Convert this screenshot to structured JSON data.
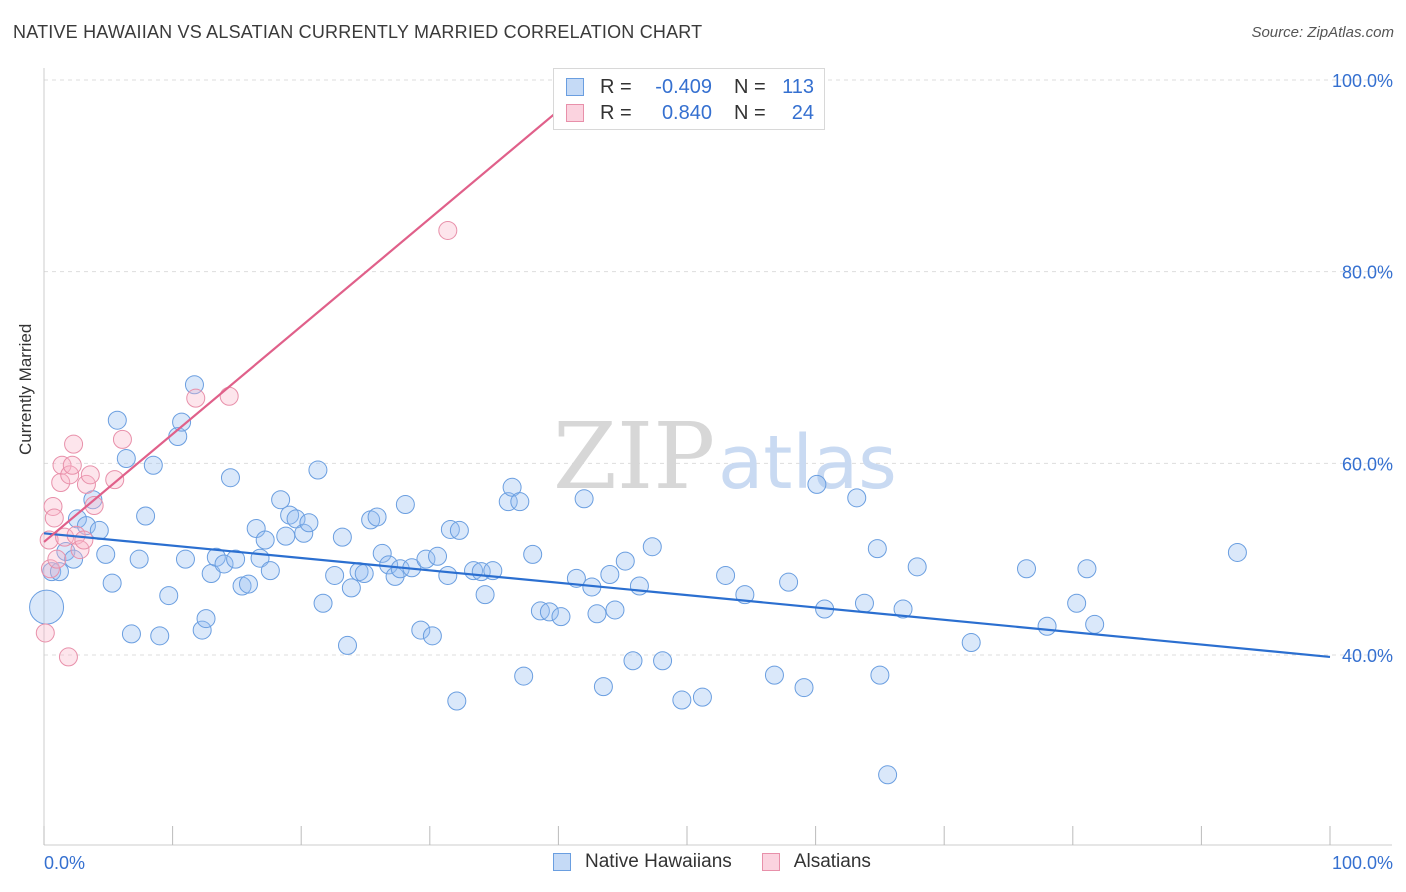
{
  "header": {
    "title": "NATIVE HAWAIIAN VS ALSATIAN CURRENTLY MARRIED CORRELATION CHART",
    "source": "Source: ZipAtlas.com"
  },
  "watermark": {
    "zip": "ZIP",
    "atlas": "atlas"
  },
  "legend": {
    "rows": [
      {
        "r_label": "R =",
        "r_value": "-0.409",
        "n_label": "N =",
        "n_value": "113",
        "color": "#a8c8f0",
        "border": "#6a9ee0"
      },
      {
        "r_label": "R =",
        "r_value": "0.840",
        "n_label": "N =",
        "n_value": "24",
        "color": "#f8bfd0",
        "border": "#e890aa"
      }
    ]
  },
  "bottom_legend": {
    "series1": "Native Hawaiians",
    "series2": "Alsatians"
  },
  "colors": {
    "blue_fill": "rgba(150,190,240,0.35)",
    "blue_stroke": "#6a9ee0",
    "blue_line": "#2b6fd0",
    "pink_fill": "rgba(248,180,200,0.35)",
    "pink_stroke": "#e890aa",
    "pink_line": "#e0608a",
    "axis_text": "#3570d0",
    "grid": "#dddddd"
  },
  "chart_data": {
    "type": "scatter",
    "title": "NATIVE HAWAIIAN VS ALSATIAN CURRENTLY MARRIED CORRELATION CHART",
    "xlabel": "",
    "ylabel": "Currently Married",
    "xlim": [
      0,
      100
    ],
    "ylim": [
      20,
      103
    ],
    "x_tick_labels": [
      "0.0%",
      "100.0%"
    ],
    "y_ticks": [
      40,
      60,
      80,
      100
    ],
    "y_tick_labels": [
      "40.0%",
      "60.0%",
      "80.0%",
      "100.0%"
    ],
    "grid": true,
    "series": [
      {
        "name": "Native Hawaiians",
        "trend": {
          "x": [
            0,
            100
          ],
          "y": [
            52.7,
            39.8
          ]
        },
        "points": [
          [
            0.2,
            45.0
          ],
          [
            0.6,
            48.7
          ],
          [
            1.2,
            48.7
          ],
          [
            1.7,
            50.8
          ],
          [
            2.3,
            50.0
          ],
          [
            2.6,
            54.2
          ],
          [
            3.3,
            53.5
          ],
          [
            3.8,
            56.2
          ],
          [
            4.3,
            53.0
          ],
          [
            4.8,
            50.5
          ],
          [
            5.3,
            47.5
          ],
          [
            5.7,
            64.5
          ],
          [
            6.4,
            60.5
          ],
          [
            6.8,
            42.2
          ],
          [
            7.4,
            50.0
          ],
          [
            7.9,
            54.5
          ],
          [
            8.5,
            59.8
          ],
          [
            9.0,
            42.0
          ],
          [
            9.7,
            46.2
          ],
          [
            10.4,
            62.8
          ],
          [
            10.7,
            64.3
          ],
          [
            11.0,
            50.0
          ],
          [
            11.7,
            68.2
          ],
          [
            12.3,
            42.6
          ],
          [
            12.6,
            43.8
          ],
          [
            13.0,
            48.5
          ],
          [
            13.4,
            50.2
          ],
          [
            14.0,
            49.5
          ],
          [
            14.5,
            58.5
          ],
          [
            14.9,
            50.0
          ],
          [
            15.4,
            47.2
          ],
          [
            15.9,
            47.4
          ],
          [
            16.5,
            53.2
          ],
          [
            16.8,
            50.1
          ],
          [
            17.2,
            52.0
          ],
          [
            17.6,
            48.8
          ],
          [
            18.4,
            56.2
          ],
          [
            18.8,
            52.4
          ],
          [
            19.1,
            54.6
          ],
          [
            19.6,
            54.2
          ],
          [
            20.2,
            52.7
          ],
          [
            20.6,
            53.8
          ],
          [
            21.3,
            59.3
          ],
          [
            21.7,
            45.4
          ],
          [
            22.6,
            48.3
          ],
          [
            23.2,
            52.3
          ],
          [
            23.6,
            41.0
          ],
          [
            23.9,
            47.0
          ],
          [
            24.5,
            48.7
          ],
          [
            24.9,
            48.5
          ],
          [
            25.4,
            54.1
          ],
          [
            25.9,
            54.4
          ],
          [
            26.3,
            50.6
          ],
          [
            26.8,
            49.4
          ],
          [
            27.3,
            48.2
          ],
          [
            27.7,
            49.0
          ],
          [
            28.1,
            55.7
          ],
          [
            28.6,
            49.1
          ],
          [
            29.3,
            42.6
          ],
          [
            29.7,
            50.0
          ],
          [
            30.2,
            42.0
          ],
          [
            30.6,
            50.3
          ],
          [
            31.4,
            48.3
          ],
          [
            31.6,
            53.1
          ],
          [
            32.1,
            35.2
          ],
          [
            32.3,
            53.0
          ],
          [
            33.4,
            48.8
          ],
          [
            34.0,
            48.7
          ],
          [
            34.3,
            46.3
          ],
          [
            34.9,
            48.8
          ],
          [
            36.1,
            56.0
          ],
          [
            36.4,
            57.5
          ],
          [
            37.0,
            56.0
          ],
          [
            37.3,
            37.8
          ],
          [
            38.0,
            50.5
          ],
          [
            38.6,
            44.6
          ],
          [
            39.3,
            44.5
          ],
          [
            40.2,
            44.0
          ],
          [
            41.4,
            48.0
          ],
          [
            42.0,
            56.3
          ],
          [
            42.6,
            47.1
          ],
          [
            43.0,
            44.3
          ],
          [
            43.5,
            36.7
          ],
          [
            44.0,
            48.4
          ],
          [
            44.4,
            44.7
          ],
          [
            45.2,
            49.8
          ],
          [
            45.8,
            39.4
          ],
          [
            46.3,
            47.2
          ],
          [
            47.3,
            51.3
          ],
          [
            48.1,
            39.4
          ],
          [
            49.6,
            35.3
          ],
          [
            51.2,
            35.6
          ],
          [
            53.0,
            48.3
          ],
          [
            54.5,
            46.3
          ],
          [
            56.8,
            37.9
          ],
          [
            57.9,
            47.6
          ],
          [
            59.1,
            36.6
          ],
          [
            60.1,
            57.8
          ],
          [
            60.7,
            44.8
          ],
          [
            63.2,
            56.4
          ],
          [
            63.8,
            45.4
          ],
          [
            64.8,
            51.1
          ],
          [
            65.0,
            37.9
          ],
          [
            65.6,
            27.5
          ],
          [
            66.8,
            44.8
          ],
          [
            67.9,
            49.2
          ],
          [
            72.1,
            41.3
          ],
          [
            76.4,
            49.0
          ],
          [
            78.0,
            43.0
          ],
          [
            80.3,
            45.4
          ],
          [
            81.1,
            49.0
          ],
          [
            81.7,
            43.2
          ],
          [
            92.8,
            50.7
          ]
        ]
      },
      {
        "name": "Alsatians",
        "trend": {
          "x": [
            0,
            40
          ],
          "y": [
            51.8,
            96.8
          ]
        },
        "points": [
          [
            0.1,
            42.3
          ],
          [
            0.4,
            52.0
          ],
          [
            0.5,
            49.0
          ],
          [
            0.7,
            55.5
          ],
          [
            0.8,
            54.3
          ],
          [
            1.0,
            50.0
          ],
          [
            1.3,
            58.0
          ],
          [
            1.4,
            59.8
          ],
          [
            1.6,
            52.3
          ],
          [
            1.9,
            39.8
          ],
          [
            2.0,
            58.8
          ],
          [
            2.2,
            59.8
          ],
          [
            2.3,
            62.0
          ],
          [
            2.5,
            52.5
          ],
          [
            2.8,
            51.0
          ],
          [
            3.1,
            52.0
          ],
          [
            3.3,
            57.8
          ],
          [
            3.6,
            58.8
          ],
          [
            3.9,
            55.6
          ],
          [
            5.5,
            58.3
          ],
          [
            6.1,
            62.5
          ],
          [
            11.8,
            66.8
          ],
          [
            14.4,
            67.0
          ],
          [
            31.4,
            84.3
          ]
        ]
      }
    ]
  }
}
